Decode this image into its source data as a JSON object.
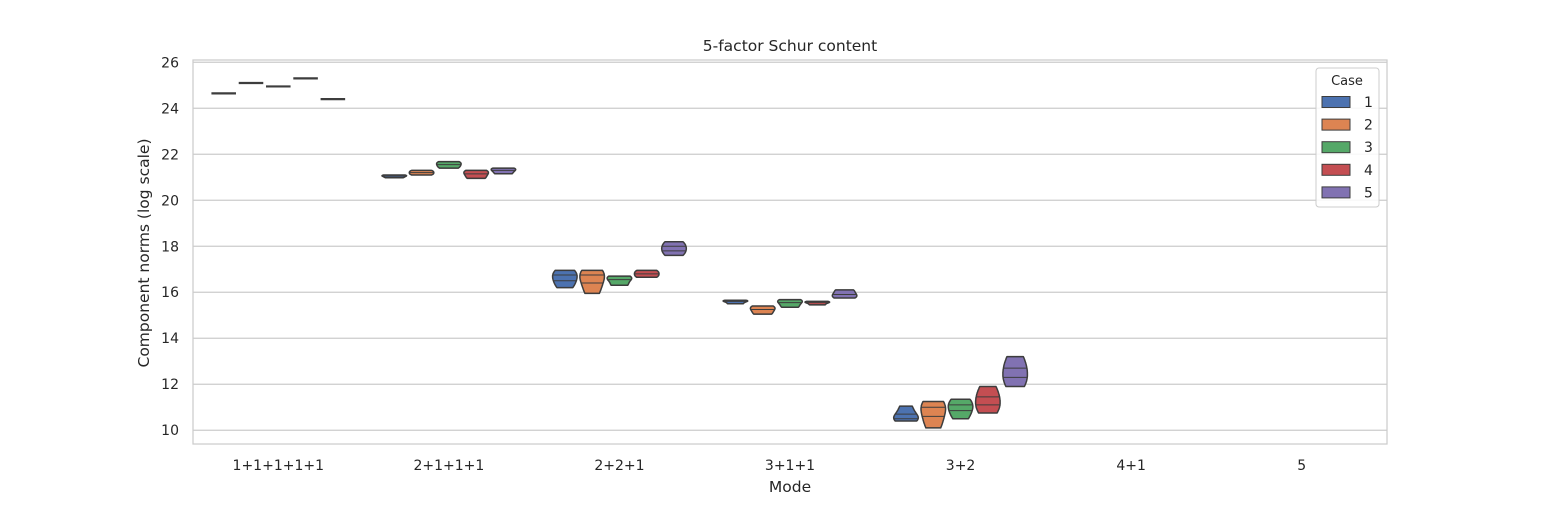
{
  "chart_data": {
    "type": "violin",
    "title": "5-factor Schur content",
    "xlabel": "Mode",
    "ylabel": "Component norms (log scale)",
    "categories": [
      "1+1+1+1+1",
      "2+1+1+1",
      "2+2+1",
      "3+1+1",
      "3+2",
      "4+1",
      "5"
    ],
    "ylim": [
      9.4,
      26.1
    ],
    "yticks": [
      10,
      12,
      14,
      16,
      18,
      20,
      22,
      24,
      26
    ],
    "grid": true,
    "legend": {
      "title": "Case",
      "placement": "top-right"
    },
    "series": [
      {
        "name": "1",
        "color": "#4c72b0",
        "data": [
          [
            24.65
          ],
          [
            21.1,
            21.05,
            20.98
          ],
          [
            16.2,
            16.5,
            16.75,
            16.95
          ],
          [
            15.5,
            15.6,
            15.65
          ],
          [
            10.4,
            10.5,
            10.7,
            11.05
          ],
          null,
          null
        ]
      },
      {
        "name": "2",
        "color": "#dd8452",
        "data": [
          [
            25.1
          ],
          [
            21.1,
            21.2,
            21.3
          ],
          [
            15.95,
            16.4,
            16.75,
            16.95
          ],
          [
            15.05,
            15.25,
            15.4
          ],
          [
            10.1,
            10.6,
            11.0,
            11.25
          ],
          null,
          null
        ]
      },
      {
        "name": "3",
        "color": "#55a868",
        "data": [
          [
            24.95
          ],
          [
            21.4,
            21.55,
            21.68
          ],
          [
            16.3,
            16.55,
            16.7
          ],
          [
            15.35,
            15.55,
            15.68
          ],
          [
            10.5,
            10.85,
            11.1,
            11.35
          ],
          null,
          null
        ]
      },
      {
        "name": "4",
        "color": "#c44e52",
        "data": [
          [
            25.3
          ],
          [
            20.95,
            21.15,
            21.3
          ],
          [
            16.65,
            16.8,
            16.95
          ],
          [
            15.45,
            15.55,
            15.6
          ],
          [
            10.75,
            11.1,
            11.45,
            11.9
          ],
          null,
          null
        ]
      },
      {
        "name": "5",
        "color": "#8172b2",
        "data": [
          [
            24.4
          ],
          [
            21.15,
            21.3,
            21.4
          ],
          [
            17.6,
            17.8,
            18.0,
            18.2
          ],
          [
            15.75,
            15.9,
            16.1
          ],
          [
            11.9,
            12.3,
            12.7,
            13.2
          ],
          null,
          null
        ]
      }
    ]
  }
}
